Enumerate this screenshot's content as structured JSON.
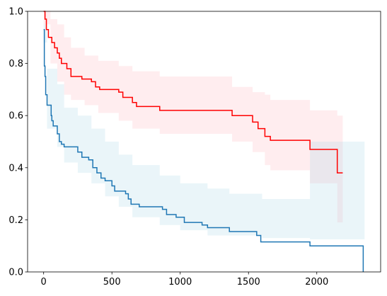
{
  "chart_data": {
    "type": "step",
    "xlim": [
      -117.5,
      2467.5
    ],
    "xticks": [
      0,
      500,
      1000,
      1500,
      2000
    ],
    "ylim": [
      0,
      1
    ],
    "yticks": [
      {
        "value": 0,
        "label": "0.0"
      },
      {
        "value": 0.2,
        "label": "0.2"
      },
      {
        "value": 0.4,
        "label": "0.4"
      },
      {
        "value": 0.6,
        "label": "0.6"
      },
      {
        "value": 0.8,
        "label": "0.8"
      },
      {
        "value": 1,
        "label": "1.0"
      }
    ],
    "bands": [
      {
        "color": "#ffb6c1",
        "x": [
          0,
          50,
          100,
          150,
          200,
          300,
          400,
          550,
          650,
          850,
          1380,
          1530,
          1620,
          1660,
          1950,
          2150,
          2190
        ],
        "upper": [
          1.0,
          0.97,
          0.95,
          0.9,
          0.86,
          0.83,
          0.81,
          0.79,
          0.77,
          0.75,
          0.71,
          0.69,
          0.68,
          0.66,
          0.62,
          0.6,
          0.6
        ],
        "lower": [
          0.95,
          0.8,
          0.73,
          0.68,
          0.66,
          0.64,
          0.61,
          0.58,
          0.55,
          0.53,
          0.5,
          0.46,
          0.41,
          0.39,
          0.34,
          0.19,
          0.19
        ]
      },
      {
        "color": "#add8e6",
        "x": [
          0,
          25,
          100,
          150,
          250,
          350,
          450,
          550,
          650,
          850,
          1000,
          1200,
          1360,
          1600,
          1950,
          2350
        ],
        "upper": [
          0.95,
          0.78,
          0.72,
          0.63,
          0.6,
          0.55,
          0.5,
          0.45,
          0.41,
          0.37,
          0.34,
          0.32,
          0.3,
          0.28,
          0.5,
          0.5
        ],
        "lower": [
          0.88,
          0.55,
          0.48,
          0.42,
          0.38,
          0.34,
          0.29,
          0.25,
          0.21,
          0.18,
          0.16,
          0.14,
          0.14,
          0.13,
          0.125,
          0.125
        ]
      }
    ],
    "series": [
      {
        "color": "#1f77b4",
        "x": [
          0,
          5,
          10,
          15,
          25,
          55,
          60,
          70,
          100,
          115,
          130,
          150,
          250,
          280,
          330,
          360,
          390,
          420,
          450,
          500,
          520,
          600,
          620,
          640,
          700,
          870,
          900,
          970,
          1030,
          1160,
          1200,
          1360,
          1560,
          1590,
          1950,
          2340,
          2340
        ],
        "values": [
          0.93,
          0.79,
          0.75,
          0.68,
          0.64,
          0.6,
          0.58,
          0.56,
          0.53,
          0.5,
          0.49,
          0.48,
          0.46,
          0.44,
          0.43,
          0.4,
          0.38,
          0.36,
          0.35,
          0.33,
          0.31,
          0.3,
          0.28,
          0.26,
          0.25,
          0.24,
          0.22,
          0.21,
          0.19,
          0.18,
          0.17,
          0.155,
          0.14,
          0.115,
          0.1,
          0.1,
          0.0
        ]
      },
      {
        "color": "#ff0000",
        "x": [
          0,
          10,
          20,
          35,
          60,
          80,
          100,
          115,
          130,
          170,
          200,
          280,
          350,
          380,
          410,
          550,
          580,
          650,
          680,
          850,
          1380,
          1530,
          1570,
          1620,
          1660,
          1950,
          2150,
          2190
        ],
        "values": [
          1.0,
          0.97,
          0.93,
          0.9,
          0.88,
          0.86,
          0.84,
          0.82,
          0.8,
          0.78,
          0.75,
          0.74,
          0.73,
          0.71,
          0.7,
          0.69,
          0.67,
          0.65,
          0.635,
          0.62,
          0.6,
          0.575,
          0.55,
          0.52,
          0.505,
          0.47,
          0.38,
          0.38
        ]
      }
    ]
  }
}
